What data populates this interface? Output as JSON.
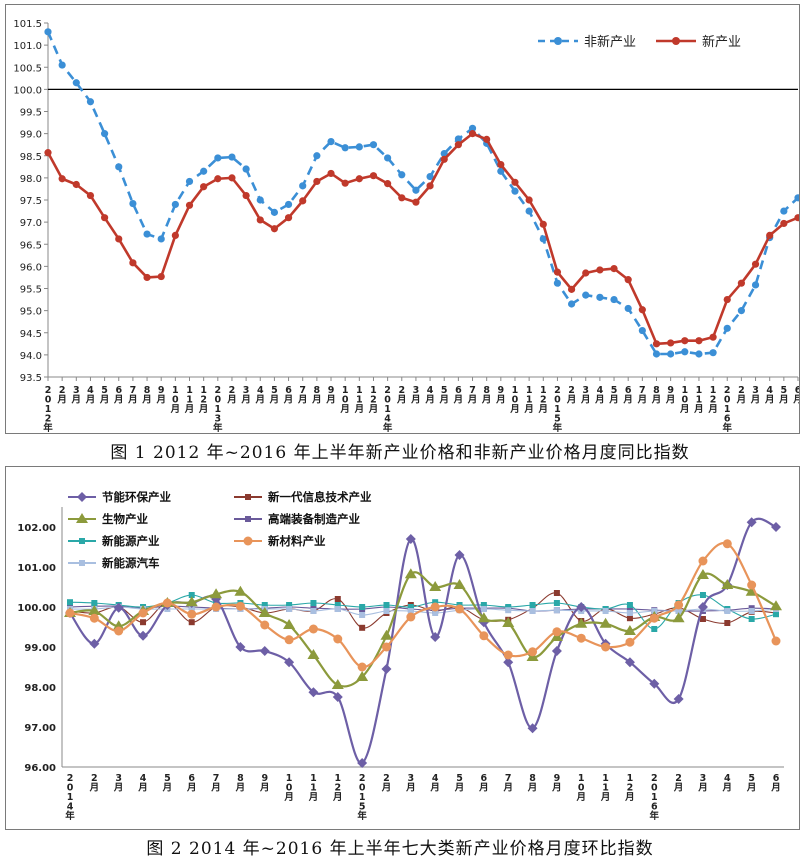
{
  "charts": [
    {
      "caption": "图 1   2012 年~2016 年上半年新产业价格和非新产业价格月度同比指数",
      "chart_data": {
        "type": "line",
        "title": "",
        "xlabel": "",
        "ylabel": "",
        "ylim": [
          93.5,
          101.5
        ],
        "yticks": [
          "93.5",
          "94.0",
          "94.5",
          "95.0",
          "95.5",
          "96.0",
          "96.5",
          "97.0",
          "97.5",
          "98.0",
          "98.5",
          "99.0",
          "99.5",
          "100.0",
          "100.5",
          "101.0",
          "101.5"
        ],
        "reference_line": 100.0,
        "legend": "top-right",
        "categories": [
          "2012年",
          "2月",
          "3月",
          "4月",
          "5月",
          "6月",
          "7月",
          "8月",
          "9月",
          "10月",
          "11月",
          "12月",
          "2013年",
          "2月",
          "3月",
          "4月",
          "5月",
          "6月",
          "7月",
          "8月",
          "9月",
          "10月",
          "11月",
          "12月",
          "2014年",
          "2月",
          "3月",
          "4月",
          "5月",
          "6月",
          "7月",
          "8月",
          "9月",
          "10月",
          "11月",
          "12月",
          "2015年",
          "2月",
          "3月",
          "4月",
          "5月",
          "6月",
          "7月",
          "8月",
          "9月",
          "10月",
          "11月",
          "12月",
          "2016年",
          "2月",
          "3月",
          "4月",
          "5月",
          "6月"
        ],
        "series": [
          {
            "name": "非新产业",
            "color": "#3b8fd6",
            "style": "dashed",
            "values": [
              101.3,
              100.55,
              100.15,
              99.72,
              99.0,
              98.25,
              97.42,
              96.73,
              96.62,
              97.4,
              97.92,
              98.15,
              98.45,
              98.47,
              98.2,
              97.5,
              97.22,
              97.4,
              97.82,
              98.5,
              98.82,
              98.68,
              98.7,
              98.75,
              98.45,
              98.07,
              97.72,
              98.03,
              98.55,
              98.88,
              99.12,
              98.78,
              98.15,
              97.7,
              97.25,
              96.62,
              95.62,
              95.15,
              95.35,
              95.3,
              95.25,
              95.05,
              94.55,
              94.02,
              94.02,
              94.07,
              94.02,
              94.05,
              94.6,
              95.0,
              95.58,
              96.65,
              97.25,
              97.55
            ]
          },
          {
            "name": "新产业",
            "color": "#c0392b",
            "style": "solid",
            "values": [
              98.57,
              97.98,
              97.85,
              97.6,
              97.1,
              96.62,
              96.08,
              95.75,
              95.77,
              96.7,
              97.38,
              97.8,
              97.98,
              98.0,
              97.6,
              97.05,
              96.85,
              97.1,
              97.48,
              97.92,
              98.1,
              97.88,
              97.98,
              98.05,
              97.87,
              97.55,
              97.45,
              97.82,
              98.42,
              98.75,
              99.0,
              98.87,
              98.3,
              97.9,
              97.5,
              96.95,
              95.87,
              95.48,
              95.85,
              95.92,
              95.95,
              95.7,
              95.02,
              94.25,
              94.27,
              94.32,
              94.32,
              94.4,
              95.25,
              95.62,
              96.05,
              96.7,
              96.97,
              97.1
            ]
          }
        ]
      }
    },
    {
      "caption": "图 2   2014 年~2016 年上半年七大类新产业价格月度环比指数",
      "chart_data": {
        "type": "line",
        "title": "",
        "xlabel": "",
        "ylabel": "",
        "ylim": [
          96.0,
          102.5
        ],
        "yticks": [
          "96.00",
          "97.00",
          "98.00",
          "99.00",
          "100.00",
          "101.00",
          "102.00"
        ],
        "legend": "top-left",
        "categories": [
          "2014年",
          "2月",
          "3月",
          "4月",
          "5月",
          "6月",
          "7月",
          "8月",
          "9月",
          "10月",
          "11月",
          "12月",
          "2015年",
          "2月",
          "3月",
          "4月",
          "5月",
          "6月",
          "7月",
          "8月",
          "9月",
          "10月",
          "11月",
          "12月",
          "2016年",
          "2月",
          "3月",
          "4月",
          "5月",
          "6月"
        ],
        "series": [
          {
            "name": "节能环保产业",
            "color": "#6d5fa6",
            "marker": "diamond",
            "values": [
              99.85,
              99.08,
              99.98,
              99.28,
              100.05,
              100.1,
              100.2,
              99.0,
              98.9,
              98.62,
              97.87,
              97.75,
              96.1,
              98.45,
              101.7,
              99.25,
              101.3,
              99.62,
              98.62,
              96.97,
              98.9,
              100.0,
              99.08,
              98.62,
              98.08,
              97.7,
              100.0,
              100.55,
              102.12,
              102.0
            ]
          },
          {
            "name": "新一代信息技术产业",
            "color": "#8b3a2f",
            "marker": "square",
            "values": [
              99.9,
              99.85,
              100.0,
              99.62,
              100.1,
              99.62,
              100.0,
              100.0,
              99.85,
              99.95,
              99.9,
              100.2,
              99.48,
              99.85,
              100.05,
              99.9,
              100.0,
              99.68,
              99.68,
              99.97,
              100.35,
              99.65,
              99.95,
              99.72,
              99.82,
              99.98,
              99.7,
              99.6,
              99.88,
              99.85
            ]
          },
          {
            "name": "生物产业",
            "color": "#8c9a3c",
            "marker": "triangle",
            "values": [
              99.85,
              99.9,
              99.52,
              99.9,
              100.1,
              100.12,
              100.32,
              100.38,
              99.85,
              99.55,
              98.8,
              98.05,
              98.25,
              99.28,
              100.82,
              100.5,
              100.55,
              99.72,
              99.6,
              98.75,
              99.25,
              99.58,
              99.58,
              99.4,
              99.75,
              99.72,
              100.8,
              100.55,
              100.38,
              100.02
            ]
          },
          {
            "name": "高端装备制造产业",
            "color": "#6a5a9a",
            "marker": "square",
            "values": [
              100.0,
              100.02,
              100.02,
              99.97,
              100.02,
              100.0,
              99.97,
              99.95,
              99.97,
              100.0,
              99.97,
              99.95,
              99.95,
              100.0,
              99.95,
              99.92,
              99.97,
              99.97,
              99.97,
              99.9,
              99.92,
              99.95,
              99.95,
              99.95,
              99.92,
              99.9,
              99.9,
              99.92,
              99.97,
              99.95
            ]
          },
          {
            "name": "新能源产业",
            "color": "#2aa8a8",
            "marker": "square",
            "values": [
              100.12,
              100.1,
              100.05,
              100.0,
              100.1,
              100.3,
              100.1,
              100.1,
              100.05,
              100.05,
              100.1,
              100.05,
              100.0,
              100.05,
              100.0,
              100.12,
              100.05,
              100.05,
              100.0,
              100.05,
              100.1,
              100.0,
              99.95,
              100.05,
              99.45,
              100.1,
              100.3,
              99.95,
              99.7,
              99.82
            ]
          },
          {
            "name": "新材料产业",
            "color": "#e8945a",
            "marker": "circle",
            "values": [
              99.85,
              99.72,
              99.4,
              99.85,
              100.1,
              99.82,
              100.0,
              100.02,
              99.55,
              99.18,
              99.45,
              99.2,
              98.5,
              99.0,
              99.75,
              100.0,
              99.95,
              99.28,
              98.8,
              98.88,
              99.38,
              99.22,
              99.0,
              99.12,
              99.72,
              100.05,
              101.15,
              101.58,
              100.55,
              99.15
            ]
          },
          {
            "name": "新能源汽车",
            "color": "#a9bfe0",
            "marker": "square",
            "values": [
              99.95,
              99.95,
              100.0,
              99.95,
              99.95,
              99.95,
              99.95,
              99.95,
              99.95,
              99.95,
              99.9,
              99.95,
              99.8,
              99.9,
              99.9,
              99.85,
              99.92,
              99.95,
              99.92,
              99.9,
              99.92,
              99.9,
              99.9,
              99.85,
              99.9,
              99.9,
              99.95,
              99.9,
              99.9,
              99.95
            ]
          }
        ]
      }
    }
  ]
}
